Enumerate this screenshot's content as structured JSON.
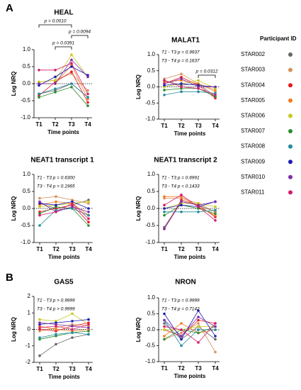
{
  "figure": {
    "panel_labels": [
      "A",
      "B"
    ],
    "legend_title": "Participant ID"
  },
  "participants": [
    {
      "name": "STAR002",
      "color": "#666666"
    },
    {
      "name": "STAR003",
      "color": "#d4925c"
    },
    {
      "name": "STAR004",
      "color": "#e41a1c"
    },
    {
      "name": "STAR005",
      "color": "#f47a20"
    },
    {
      "name": "STAR006",
      "color": "#c9c91e"
    },
    {
      "name": "STAR007",
      "color": "#2e8b2e"
    },
    {
      "name": "STAR008",
      "color": "#1f8c9e"
    },
    {
      "name": "STAR009",
      "color": "#1c1cb4"
    },
    {
      "name": "STAR010",
      "color": "#7b2ea6"
    },
    {
      "name": "STAR011",
      "color": "#d41c6c"
    }
  ],
  "chart_data": [
    {
      "type": "line",
      "title": "HEAL",
      "xlabel": "Time points",
      "ylabel": "Log NRQ",
      "categories": [
        "T1",
        "T2",
        "T3",
        "T4"
      ],
      "ylim": [
        -1,
        1
      ],
      "yticks": [
        {
          "value": -1,
          "label": "-1.0"
        },
        -0.5,
        {
          "value": 0,
          "label": "0.0"
        },
        0.5,
        {
          "value": 1,
          "label": "1.0"
        }
      ],
      "annotations": [
        "p = 0.0010",
        "p = 0.0391",
        "p = 0.0094"
      ],
      "notes": [],
      "series": [
        {
          "values": [
            -0.3,
            -0.2,
            0.0,
            -0.4
          ]
        },
        {
          "values": [
            0.05,
            0.1,
            0.3,
            -0.2
          ]
        },
        {
          "values": [
            -0.35,
            0.05,
            0.35,
            -0.55
          ]
        },
        {
          "values": [
            0.0,
            0.0,
            0.55,
            -0.45
          ]
        },
        {
          "values": [
            0.05,
            0.1,
            0.85,
            0.2
          ]
        },
        {
          "values": [
            -0.4,
            -0.25,
            -0.1,
            -0.65
          ]
        },
        {
          "values": [
            -0.3,
            -0.15,
            0.0,
            -0.4
          ]
        },
        {
          "values": [
            -0.05,
            0.2,
            0.5,
            0.25
          ]
        },
        {
          "values": [
            0.0,
            0.0,
            0.7,
            0.2
          ]
        },
        {
          "values": [
            0.4,
            0.4,
            0.6,
            -0.3
          ]
        }
      ]
    },
    {
      "type": "line",
      "title": "MALAT1",
      "xlabel": "Time points",
      "ylabel": "Log NRQ",
      "categories": [
        "T1",
        "T2",
        "T3",
        "T4"
      ],
      "ylim": [
        -1,
        1
      ],
      "yticks": [
        {
          "value": -1,
          "label": "-1.0"
        },
        -0.5,
        {
          "value": 0,
          "label": "0.0"
        },
        0.5,
        {
          "value": 1,
          "label": "1.0"
        }
      ],
      "annotations": [
        "p = 0.0312"
      ],
      "notes": [
        "T1 - T3 p = 0.9937",
        "T3 - T4 p = 0.1637"
      ],
      "series": [
        {
          "values": [
            0.2,
            0.05,
            0.1,
            -0.3
          ]
        },
        {
          "values": [
            0.25,
            0.4,
            0.1,
            -0.15
          ]
        },
        {
          "values": [
            0.1,
            0.3,
            0.05,
            -0.35
          ]
        },
        {
          "values": [
            0.15,
            0.2,
            0.1,
            -0.1
          ]
        },
        {
          "values": [
            0.0,
            0.1,
            0.2,
            -0.05
          ]
        },
        {
          "values": [
            -0.1,
            -0.05,
            -0.05,
            -0.3
          ]
        },
        {
          "values": [
            -0.25,
            -0.15,
            -0.15,
            -0.2
          ]
        },
        {
          "values": [
            0.05,
            0.1,
            0.05,
            0.0
          ]
        },
        {
          "values": [
            0.1,
            0.25,
            0.0,
            0.0
          ]
        },
        {
          "values": [
            0.2,
            0.0,
            -0.05,
            -0.25
          ]
        }
      ]
    },
    {
      "type": "line",
      "title": "NEAT1 transcript 1",
      "xlabel": "Time points",
      "ylabel": "Log NRQ",
      "categories": [
        "T1",
        "T2",
        "T3",
        "T4"
      ],
      "ylim": [
        -1,
        1
      ],
      "yticks": [
        {
          "value": -1,
          "label": "-1.0"
        },
        -0.5,
        {
          "value": 0,
          "label": "0.0"
        },
        0.5,
        {
          "value": 1,
          "label": "1.0"
        }
      ],
      "annotations": [],
      "notes": [
        "T1 - T3 p = 0.6300",
        "T3 - T4 p = 0.1965"
      ],
      "series": [
        {
          "values": [
            0.15,
            0.0,
            0.1,
            0.25
          ]
        },
        {
          "values": [
            0.3,
            0.35,
            0.25,
            0.15
          ]
        },
        {
          "values": [
            -0.1,
            0.0,
            0.1,
            -0.4
          ]
        },
        {
          "values": [
            0.1,
            0.2,
            0.15,
            -0.2
          ]
        },
        {
          "values": [
            0.05,
            0.1,
            0.15,
            0.2
          ]
        },
        {
          "values": [
            -0.15,
            0.05,
            0.0,
            -0.5
          ]
        },
        {
          "values": [
            -0.5,
            -0.05,
            0.0,
            -0.2
          ]
        },
        {
          "values": [
            0.15,
            0.1,
            0.2,
            0.0
          ]
        },
        {
          "values": [
            0.2,
            -0.1,
            0.05,
            -0.1
          ]
        },
        {
          "values": [
            -0.2,
            -0.1,
            0.15,
            -0.3
          ]
        }
      ]
    },
    {
      "type": "line",
      "title": "NEAT1 transcript 2",
      "xlabel": "Time points",
      "ylabel": "Log NRQ",
      "categories": [
        "T1",
        "T2",
        "T3",
        "T4"
      ],
      "ylim": [
        -1,
        1
      ],
      "yticks": [
        {
          "value": -1,
          "label": "-1.0"
        },
        -0.5,
        {
          "value": 0,
          "label": "0.0"
        },
        0.5,
        {
          "value": 1,
          "label": "1.0"
        }
      ],
      "annotations": [],
      "notes": [
        "T1 - T3 p = 0.6991",
        "T3 - T4 p = 0.1433"
      ],
      "series": [
        {
          "values": [
            -0.55,
            0.2,
            0.1,
            -0.1
          ]
        },
        {
          "values": [
            0.3,
            0.3,
            0.15,
            -0.1
          ]
        },
        {
          "values": [
            -0.6,
            0.25,
            0.1,
            -0.25
          ]
        },
        {
          "values": [
            0.35,
            0.35,
            0.05,
            -0.2
          ]
        },
        {
          "values": [
            0.0,
            0.15,
            0.15,
            0.05
          ]
        },
        {
          "values": [
            -0.2,
            0.1,
            0.0,
            -0.15
          ]
        },
        {
          "values": [
            -0.1,
            -0.1,
            -0.1,
            -0.05
          ]
        },
        {
          "values": [
            0.0,
            0.1,
            0.05,
            0.2
          ]
        },
        {
          "values": [
            -0.6,
            0.2,
            0.1,
            0.2
          ]
        },
        {
          "values": [
            0.1,
            0.4,
            0.05,
            -0.35
          ]
        }
      ]
    },
    {
      "type": "line",
      "title": "GAS5",
      "xlabel": "Time points",
      "ylabel": "Log NRQ",
      "categories": [
        "T1",
        "T2",
        "T3",
        "T4"
      ],
      "ylim": [
        -2,
        2
      ],
      "yticks": [
        -2,
        -1,
        0,
        1,
        2
      ],
      "annotations": [],
      "notes": [
        "T1 - T3 p > 0.9999",
        "T3 - T4 p > 0.9999"
      ],
      "series": [
        {
          "values": [
            -1.6,
            -0.9,
            -0.5,
            -0.3
          ]
        },
        {
          "values": [
            -0.1,
            0.1,
            0.3,
            0.2
          ]
        },
        {
          "values": [
            0.0,
            -0.1,
            0.2,
            0.4
          ]
        },
        {
          "values": [
            0.2,
            0.0,
            -0.1,
            0.0
          ]
        },
        {
          "values": [
            0.6,
            0.5,
            0.95,
            0.3
          ]
        },
        {
          "values": [
            -0.6,
            -0.4,
            -0.2,
            -0.1
          ]
        },
        {
          "values": [
            -0.5,
            -0.3,
            -0.2,
            -0.3
          ]
        },
        {
          "values": [
            0.3,
            0.4,
            0.5,
            0.6
          ]
        },
        {
          "values": [
            0.4,
            0.3,
            0.2,
            0.1
          ]
        },
        {
          "values": [
            0.1,
            0.2,
            0.0,
            0.3
          ]
        }
      ]
    },
    {
      "type": "line",
      "title": "NRON",
      "xlabel": "Time points",
      "ylabel": "Log NRQ",
      "categories": [
        "T1",
        "T2",
        "T3",
        "T4"
      ],
      "ylim": [
        -1,
        1
      ],
      "yticks": [
        {
          "value": -1,
          "label": "-1.0"
        },
        -0.5,
        {
          "value": 0,
          "label": "0.0"
        },
        0.5,
        {
          "value": 1,
          "label": "1.0"
        }
      ],
      "annotations": [],
      "notes": [
        "T1 - T3 p = 0.9999",
        "T3 - T4 p = 0.7142"
      ],
      "series": [
        {
          "values": [
            0.2,
            -0.3,
            0.1,
            -0.3
          ]
        },
        {
          "values": [
            -0.3,
            -0.1,
            0.2,
            -0.7
          ]
        },
        {
          "values": [
            0.0,
            -0.2,
            0.3,
            0.2
          ]
        },
        {
          "values": [
            -0.2,
            0.2,
            -0.1,
            0.0
          ]
        },
        {
          "values": [
            0.0,
            0.0,
            0.1,
            0.1
          ]
        },
        {
          "values": [
            -0.3,
            0.0,
            -0.1,
            0.1
          ]
        },
        {
          "values": [
            0.3,
            -0.5,
            0.0,
            0.0
          ]
        },
        {
          "values": [
            0.5,
            -0.3,
            0.6,
            -0.2
          ]
        },
        {
          "values": [
            0.3,
            -0.2,
            0.4,
            0.1
          ]
        },
        {
          "values": [
            0.1,
            0.0,
            -0.4,
            0.2
          ]
        }
      ]
    }
  ]
}
